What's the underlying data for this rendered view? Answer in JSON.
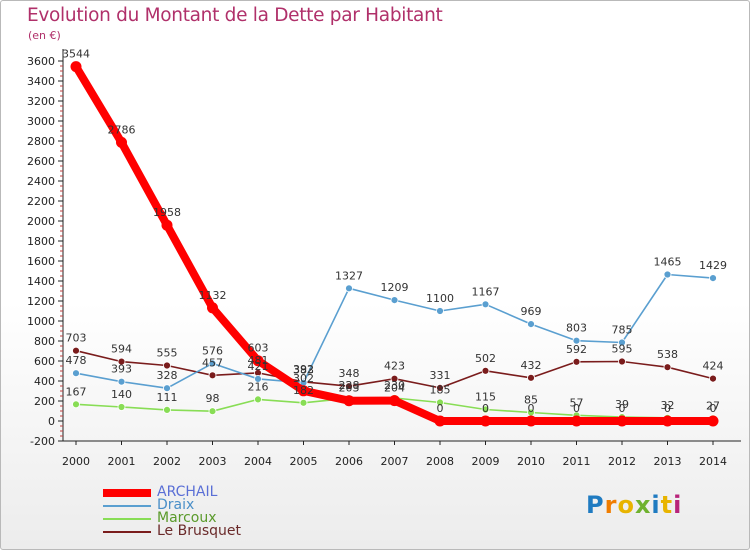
{
  "chart_data": {
    "type": "line",
    "title": "Evolution du Montant de la Dette par Habitant",
    "unit_label": "(en €)",
    "xlabel": "",
    "ylabel": "",
    "x": [
      "2000",
      "2001",
      "2002",
      "2003",
      "2004",
      "2005",
      "2006",
      "2007",
      "2008",
      "2009",
      "2010",
      "2011",
      "2012",
      "2013",
      "2014"
    ],
    "yticks": [
      "3600",
      "3400",
      "3200",
      "3000",
      "2800",
      "2600",
      "2400",
      "2200",
      "2000",
      "1800",
      "1600",
      "1400",
      "1200",
      "1000",
      "800",
      "600",
      "400",
      "200",
      "0",
      "-200"
    ],
    "ylim": [
      -200,
      3600
    ],
    "grid": false,
    "legend_position": "bottom-left",
    "series": [
      {
        "name": "ARCHAIL",
        "color": "#ff0000",
        "values": [
          3544,
          2786,
          1958,
          1132,
          603,
          302,
          203,
          204,
          0,
          0,
          0,
          0,
          0,
          0,
          0
        ],
        "labels": [
          "3544",
          "2786",
          "1958",
          "1132",
          "603",
          "302",
          "203",
          "204",
          "0",
          "0",
          "0",
          "0",
          "0",
          "0",
          "0"
        ]
      },
      {
        "name": "Draix",
        "color": "#5a9fd0",
        "values": [
          478,
          393,
          328,
          576,
          421,
          383,
          1327,
          1209,
          1100,
          1167,
          969,
          803,
          785,
          1465,
          1429
        ],
        "labels": [
          "478",
          "393",
          "328",
          "576",
          "421",
          "383",
          "1327",
          "1209",
          "1100",
          "1167",
          "969",
          "803",
          "785",
          "1465",
          "1429"
        ]
      },
      {
        "name": "Marcoux",
        "color": "#88dd55",
        "values": [
          167,
          140,
          111,
          98,
          216,
          182,
          228,
          230,
          185,
          115,
          85,
          57,
          39,
          32,
          27
        ],
        "labels": [
          "167",
          "140",
          "111",
          "98",
          "216",
          "182",
          "228",
          "230",
          "185",
          "115",
          "85",
          "57",
          "39",
          "32",
          "27"
        ]
      },
      {
        "name": "Le Brusquet",
        "color": "#7a1c1c",
        "values": [
          703,
          594,
          555,
          457,
          481,
          392,
          348,
          423,
          331,
          502,
          432,
          592,
          595,
          538,
          424
        ],
        "labels": [
          "703",
          "594",
          "555",
          "457",
          "481",
          "392",
          "348",
          "423",
          "331",
          "502",
          "432",
          "592",
          "595",
          "538",
          "424"
        ]
      }
    ]
  },
  "logo": {
    "letters": [
      "P",
      "r",
      "o",
      "x",
      "i",
      "t",
      "i"
    ],
    "colors": [
      "#1f7bc1",
      "#f07d00",
      "#e8b400",
      "#6fb22e",
      "#1f7bc1",
      "#e8b400",
      "#b8247a"
    ]
  }
}
